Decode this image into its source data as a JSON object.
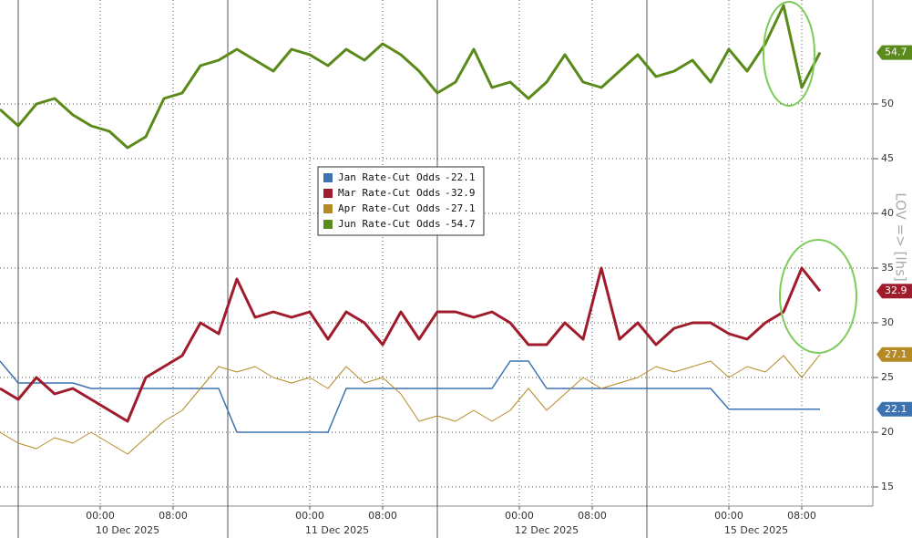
{
  "chart_data": {
    "type": "line",
    "annotation": "LOV => [lhs]",
    "x": [
      -11,
      -9,
      -7,
      -5,
      -3,
      -1,
      1,
      3,
      5,
      7,
      9,
      11,
      13,
      15,
      17,
      19,
      21,
      23,
      25,
      27,
      29,
      31,
      33,
      35,
      37,
      39,
      41,
      43,
      45,
      47,
      49,
      51,
      53,
      55,
      57,
      59,
      61,
      63,
      65,
      67,
      69,
      71,
      73,
      75,
      77,
      79
    ],
    "xlim": [
      -11,
      84.8
    ],
    "xticks": [
      {
        "value": 0,
        "label": "00:00"
      },
      {
        "value": 8,
        "label": "08:00"
      },
      {
        "value": 23,
        "label": "00:00"
      },
      {
        "value": 31,
        "label": "08:00"
      },
      {
        "value": 46,
        "label": "00:00"
      },
      {
        "value": 54,
        "label": "08:00"
      },
      {
        "value": 69,
        "label": "00:00"
      },
      {
        "value": 77,
        "label": "08:00"
      }
    ],
    "x_groups": [
      "10 Dec 2025",
      "11 Dec 2025",
      "12 Dec 2025",
      "15 Dec 2025"
    ],
    "ylim": [
      13.25,
      59.5
    ],
    "yticks": [
      15,
      20,
      25,
      30,
      35,
      40,
      45,
      50
    ],
    "grid": true,
    "legend": "center",
    "series": [
      {
        "name": "Jan Rate-Cut Odds",
        "color": "#3d72b0",
        "values": [
          26.5,
          24.5,
          24.5,
          24.5,
          24.5,
          24,
          24,
          24,
          24,
          24,
          24,
          24,
          24,
          20,
          20,
          20,
          20,
          20,
          20,
          24,
          24,
          24,
          24,
          24,
          24,
          24,
          24,
          24,
          26.5,
          26.5,
          24,
          24,
          24,
          24,
          24,
          24,
          24,
          24,
          24,
          24,
          22.1,
          22.1,
          22.1,
          22.1,
          22.1,
          22.1
        ]
      },
      {
        "name": "Mar Rate-Cut Odds",
        "color": "#a01c2c",
        "values": [
          24,
          23,
          25,
          23.5,
          24,
          23,
          22,
          21,
          25,
          26,
          27,
          30,
          29,
          34,
          30.5,
          31,
          30.5,
          31,
          28.5,
          31,
          30,
          28,
          31,
          28.5,
          31,
          31,
          30.5,
          31,
          30,
          28,
          28,
          30,
          28.5,
          35,
          28.5,
          30,
          28,
          29.5,
          30,
          30,
          29,
          28.5,
          30,
          31,
          35,
          32.9
        ]
      },
      {
        "name": "Apr Rate-Cut Odds",
        "color": "#b58a24",
        "values": [
          20,
          19,
          18.5,
          19.5,
          19,
          20,
          19,
          18,
          19.5,
          21,
          22,
          24,
          26,
          25.5,
          26,
          25,
          24.5,
          25,
          24,
          26,
          24.5,
          25,
          23.5,
          21,
          21.5,
          21,
          22,
          21,
          22,
          24,
          22,
          23.5,
          25,
          24,
          24.5,
          25,
          26,
          25.5,
          26,
          26.5,
          25,
          26,
          25.5,
          27,
          25,
          27.1
        ]
      },
      {
        "name": "Jun Rate-Cut Odds",
        "color": "#5a8a1a",
        "values": [
          49.5,
          48,
          50,
          50.5,
          49,
          48,
          47.5,
          46,
          47,
          50.5,
          51,
          53.5,
          54,
          55,
          54,
          53,
          55,
          54.5,
          53.5,
          55,
          54,
          55.5,
          54.5,
          53,
          51,
          52,
          55,
          51.5,
          52,
          50.5,
          52,
          54.5,
          52,
          51.5,
          53,
          54.5,
          52.5,
          53,
          54,
          52,
          55,
          53,
          55.5,
          59,
          51.5,
          54.7
        ]
      }
    ]
  }
}
